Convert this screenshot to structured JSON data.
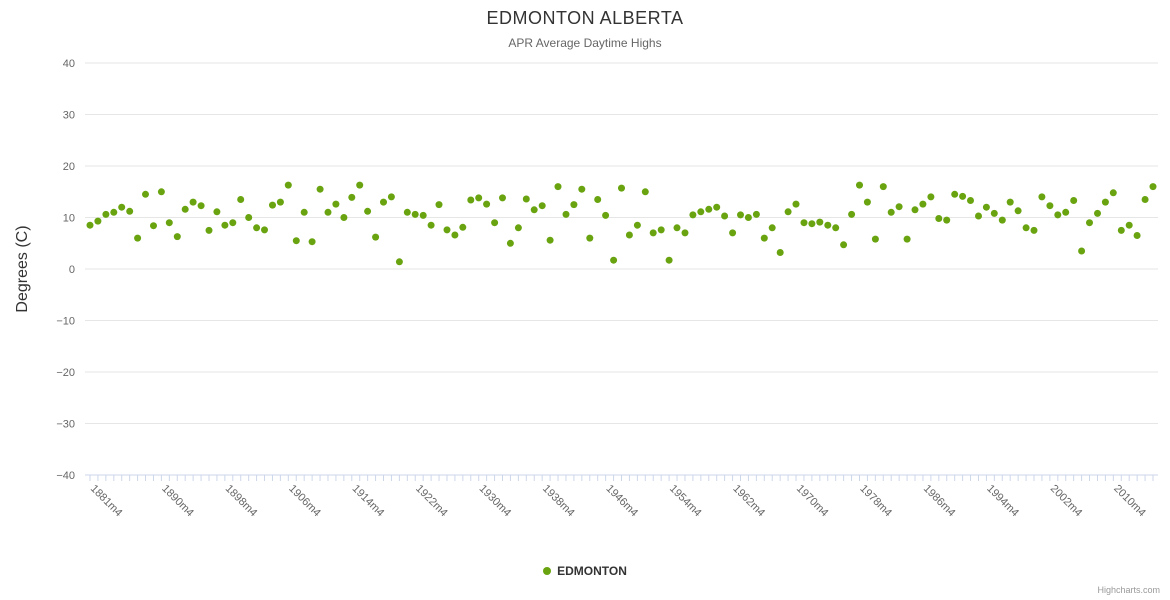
{
  "title": "EDMONTON ALBERTA",
  "subtitle": "APR Average Daytime Highs",
  "y_axis_title": "Degrees (C)",
  "legend": {
    "label": "EDMONTON"
  },
  "credits": "Highcharts.com",
  "colors": {
    "series": "#69a410",
    "grid": "#e6e6e6",
    "axis_line": "#ccd6eb",
    "tick": "#ccd6eb",
    "axis_text": "#666666",
    "title_text": "#333333",
    "subtitle_text": "#666666",
    "legend_text": "#333333",
    "credits_text": "#999999"
  },
  "chart_data": {
    "type": "scatter",
    "title": "EDMONTON ALBERTA",
    "subtitle": "APR Average Daytime Highs",
    "xlabel": "",
    "ylabel": "Degrees (C)",
    "ylim": [
      -40,
      40
    ],
    "y_ticks": [
      40,
      30,
      20,
      10,
      0,
      -10,
      -20,
      -30,
      -40
    ],
    "y_tick_labels": [
      "40",
      "30",
      "20",
      "10",
      "0",
      "−10",
      "−20",
      "−30",
      "−40"
    ],
    "x_range": [
      1881,
      2015
    ],
    "x_tick_labels": [
      "1881m4",
      "1890m4",
      "1898m4",
      "1906m4",
      "1914m4",
      "1922m4",
      "1930m4",
      "1938m4",
      "1946m4",
      "1954m4",
      "1962m4",
      "1970m4",
      "1978m4",
      "1986m4",
      "1994m4",
      "2002m4",
      "2010m4"
    ],
    "grid": true,
    "legend_position": "bottom",
    "series": [
      {
        "name": "EDMONTON",
        "color": "#69a410",
        "marker_radius": 3.5,
        "points": [
          [
            1881,
            8.5
          ],
          [
            1882,
            9.3
          ],
          [
            1883,
            10.6
          ],
          [
            1884,
            11.0
          ],
          [
            1885,
            12.0
          ],
          [
            1886,
            11.2
          ],
          [
            1887,
            6.0
          ],
          [
            1888,
            14.5
          ],
          [
            1889,
            8.4
          ],
          [
            1890,
            15.0
          ],
          [
            1891,
            9.0
          ],
          [
            1892,
            6.3
          ],
          [
            1893,
            11.6
          ],
          [
            1894,
            13.0
          ],
          [
            1895,
            12.3
          ],
          [
            1896,
            7.5
          ],
          [
            1897,
            11.1
          ],
          [
            1898,
            8.5
          ],
          [
            1899,
            9.0
          ],
          [
            1900,
            13.5
          ],
          [
            1901,
            10.0
          ],
          [
            1902,
            8.0
          ],
          [
            1903,
            7.6
          ],
          [
            1904,
            12.4
          ],
          [
            1905,
            13.0
          ],
          [
            1906,
            16.3
          ],
          [
            1907,
            5.5
          ],
          [
            1908,
            11.0
          ],
          [
            1909,
            5.3
          ],
          [
            1910,
            15.5
          ],
          [
            1911,
            11.0
          ],
          [
            1912,
            12.6
          ],
          [
            1913,
            10.0
          ],
          [
            1914,
            13.9
          ],
          [
            1915,
            16.3
          ],
          [
            1916,
            11.2
          ],
          [
            1917,
            6.2
          ],
          [
            1918,
            13.0
          ],
          [
            1919,
            14.0
          ],
          [
            1920,
            1.4
          ],
          [
            1921,
            11.0
          ],
          [
            1922,
            10.6
          ],
          [
            1923,
            10.4
          ],
          [
            1924,
            8.5
          ],
          [
            1925,
            12.5
          ],
          [
            1926,
            7.6
          ],
          [
            1927,
            6.6
          ],
          [
            1928,
            8.1
          ],
          [
            1929,
            13.4
          ],
          [
            1930,
            13.8
          ],
          [
            1931,
            12.6
          ],
          [
            1932,
            9.0
          ],
          [
            1933,
            13.8
          ],
          [
            1934,
            5.0
          ],
          [
            1935,
            8.0
          ],
          [
            1936,
            13.6
          ],
          [
            1937,
            11.5
          ],
          [
            1938,
            12.3
          ],
          [
            1939,
            5.6
          ],
          [
            1940,
            16.0
          ],
          [
            1941,
            10.6
          ],
          [
            1942,
            12.5
          ],
          [
            1943,
            15.5
          ],
          [
            1944,
            6.0
          ],
          [
            1945,
            13.5
          ],
          [
            1946,
            10.4
          ],
          [
            1947,
            1.7
          ],
          [
            1948,
            15.7
          ],
          [
            1949,
            6.6
          ],
          [
            1950,
            8.5
          ],
          [
            1951,
            15.0
          ],
          [
            1952,
            7.0
          ],
          [
            1953,
            7.6
          ],
          [
            1954,
            1.7
          ],
          [
            1955,
            8.0
          ],
          [
            1956,
            7.0
          ],
          [
            1957,
            10.5
          ],
          [
            1958,
            11.1
          ],
          [
            1959,
            11.6
          ],
          [
            1960,
            12.0
          ],
          [
            1961,
            10.3
          ],
          [
            1962,
            7.0
          ],
          [
            1963,
            10.5
          ],
          [
            1964,
            10.0
          ],
          [
            1965,
            10.6
          ],
          [
            1966,
            6.0
          ],
          [
            1967,
            8.0
          ],
          [
            1968,
            3.2
          ],
          [
            1969,
            11.1
          ],
          [
            1970,
            12.6
          ],
          [
            1971,
            9.0
          ],
          [
            1972,
            8.8
          ],
          [
            1973,
            9.1
          ],
          [
            1974,
            8.5
          ],
          [
            1975,
            8.0
          ],
          [
            1976,
            4.7
          ],
          [
            1977,
            10.6
          ],
          [
            1978,
            16.3
          ],
          [
            1979,
            13.0
          ],
          [
            1980,
            5.8
          ],
          [
            1981,
            16.0
          ],
          [
            1982,
            11.0
          ],
          [
            1983,
            12.1
          ],
          [
            1984,
            5.8
          ],
          [
            1985,
            11.5
          ],
          [
            1986,
            12.6
          ],
          [
            1987,
            14.0
          ],
          [
            1988,
            9.8
          ],
          [
            1989,
            9.5
          ],
          [
            1990,
            14.5
          ],
          [
            1991,
            14.1
          ],
          [
            1992,
            13.3
          ],
          [
            1993,
            10.3
          ],
          [
            1994,
            12.0
          ],
          [
            1995,
            10.8
          ],
          [
            1996,
            9.5
          ],
          [
            1997,
            13.0
          ],
          [
            1998,
            11.3
          ],
          [
            1999,
            8.0
          ],
          [
            2000,
            7.5
          ],
          [
            2001,
            14.0
          ],
          [
            2002,
            12.3
          ],
          [
            2003,
            10.5
          ],
          [
            2004,
            11.0
          ],
          [
            2005,
            13.3
          ],
          [
            2006,
            3.5
          ],
          [
            2007,
            9.0
          ],
          [
            2008,
            10.8
          ],
          [
            2009,
            13.0
          ],
          [
            2010,
            14.8
          ],
          [
            2011,
            7.5
          ],
          [
            2012,
            8.5
          ],
          [
            2013,
            6.5
          ],
          [
            2014,
            13.5
          ],
          [
            2015,
            16.0
          ]
        ]
      }
    ]
  }
}
